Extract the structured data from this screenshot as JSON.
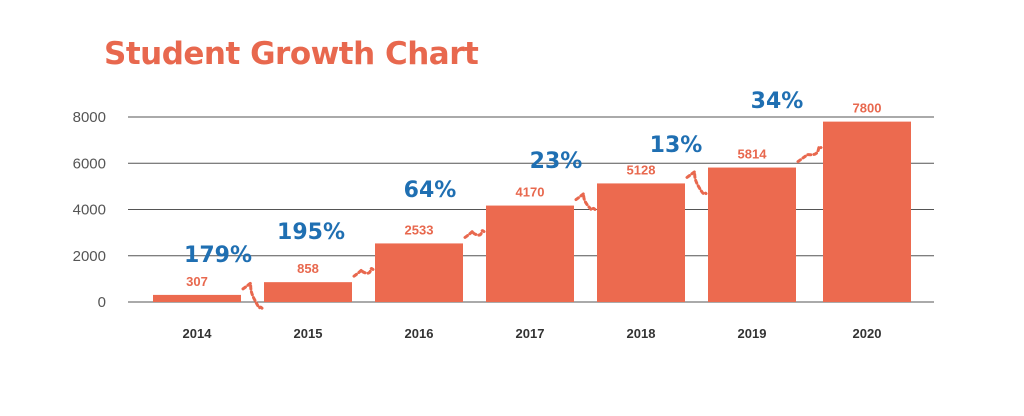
{
  "title": "Student Growth Chart",
  "colors": {
    "title": "#e8684e",
    "bar": "#ec6a4f",
    "value_label": "#e8684e",
    "growth_label": "#1f6fb2",
    "connector": "#e8684e",
    "grid": "#555555"
  },
  "chart_data": {
    "type": "bar",
    "title": "Student Growth Chart",
    "xlabel": "",
    "ylabel": "",
    "categories": [
      "2014",
      "2015",
      "2016",
      "2017",
      "2018",
      "2019",
      "2020"
    ],
    "values": [
      307,
      858,
      2533,
      4170,
      5128,
      5814,
      7800
    ],
    "value_labels": [
      "307",
      "858",
      "2533",
      "4170",
      "5128",
      "5814",
      "7800"
    ],
    "ylim": [
      0,
      8000
    ],
    "yticks": [
      0,
      2000,
      4000,
      6000,
      8000
    ],
    "ytick_labels": [
      "0",
      "2000",
      "4000",
      "6000",
      "8000"
    ],
    "grid": true,
    "legend": "none",
    "growth_annotations": [
      {
        "from": "2014",
        "to": "2015",
        "label": "179%"
      },
      {
        "from": "2015",
        "to": "2016",
        "label": "195%"
      },
      {
        "from": "2016",
        "to": "2017",
        "label": "64%"
      },
      {
        "from": "2017",
        "to": "2018",
        "label": "23%"
      },
      {
        "from": "2018",
        "to": "2019",
        "label": "13%"
      },
      {
        "from": "2019",
        "to": "2020",
        "label": "34%"
      }
    ]
  }
}
